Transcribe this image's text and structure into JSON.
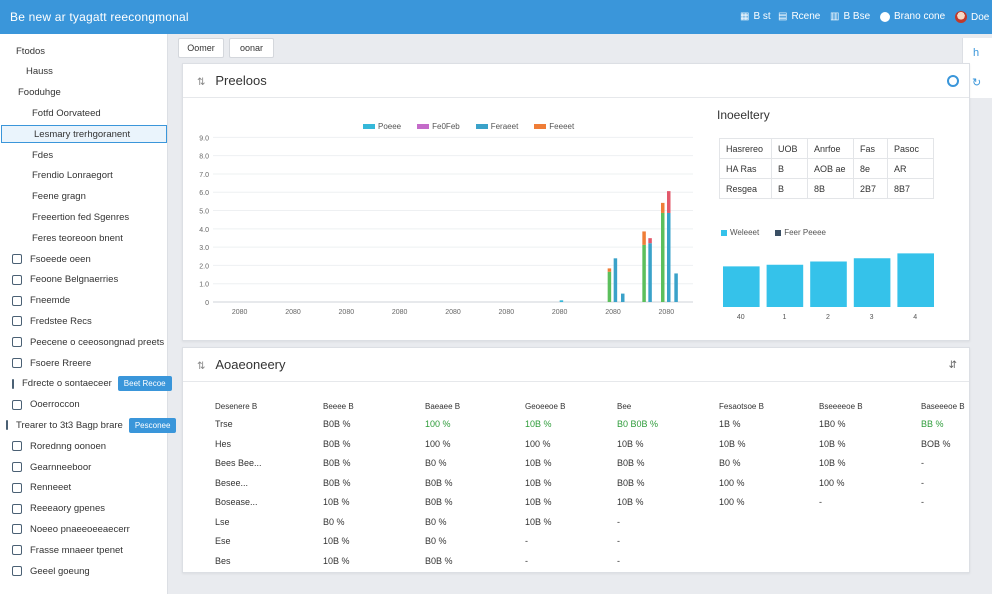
{
  "app": {
    "title": "Be new ar tyagatt reecongmonal",
    "top_items": [
      {
        "icon": "calendar-icon",
        "label": "B st"
      },
      {
        "icon": "grid-icon",
        "label": "Rcene"
      },
      {
        "icon": "bell-icon",
        "label": "B Bse"
      },
      {
        "icon": "user-icon",
        "label": "Brano cone"
      },
      {
        "icon": "avatar-icon",
        "label": "Doe"
      }
    ]
  },
  "toolbar": {
    "buttons": [
      "Oomer",
      "oonar"
    ]
  },
  "sidebar": {
    "items": [
      {
        "label": "Ftodos",
        "indent": 16,
        "icon": false,
        "active": false
      },
      {
        "label": "Hauss",
        "indent": 26,
        "icon": false,
        "active": false
      },
      {
        "label": "Fooduhge",
        "indent": 18,
        "icon": false,
        "active": false
      },
      {
        "label": "Fotfd Oorvateed",
        "indent": 32,
        "icon": false,
        "active": false
      },
      {
        "label": "Lesmary trerhgoranent",
        "indent": 32,
        "icon": false,
        "active": true
      },
      {
        "label": "Fdes",
        "indent": 32,
        "icon": false,
        "active": false
      },
      {
        "label": "Frendio Lonraegort",
        "indent": 32,
        "icon": false,
        "active": false
      },
      {
        "label": "Feene gragn",
        "indent": 32,
        "icon": false,
        "active": false
      },
      {
        "label": "Freeertion fed Sgenres",
        "indent": 32,
        "icon": false,
        "active": false
      },
      {
        "label": "Feres teoreoon bnent",
        "indent": 32,
        "icon": false,
        "active": false
      },
      {
        "label": "Fsoeede oeen",
        "indent": 12,
        "icon": true,
        "active": false
      },
      {
        "label": "Feoone Belgnaerries",
        "indent": 12,
        "icon": true,
        "active": false
      },
      {
        "label": "Fneemde",
        "indent": 12,
        "icon": true,
        "active": false
      },
      {
        "label": "Fredstee Recs",
        "indent": 12,
        "icon": true,
        "active": false
      },
      {
        "label": "Peecene o ceeosongnad preets",
        "indent": 12,
        "icon": true,
        "active": false
      },
      {
        "label": "Fsoere Rreere",
        "indent": 12,
        "icon": true,
        "active": false
      },
      {
        "label": "Fdrecte o sontaeceer",
        "indent": 12,
        "icon": true,
        "active": false,
        "badge": "Beet Recoe"
      },
      {
        "label": "Ooerroccon",
        "indent": 12,
        "icon": true,
        "active": false
      },
      {
        "label": "Trearer to 3t3 Bagp brare",
        "indent": 6,
        "icon": true,
        "active": false,
        "badge": "Pesconee"
      },
      {
        "label": "Rorednng oonoen",
        "indent": 12,
        "icon": true,
        "active": false
      },
      {
        "label": "Gearnneeboor",
        "indent": 12,
        "icon": true,
        "active": false
      },
      {
        "label": "Renneeet",
        "indent": 12,
        "icon": true,
        "active": false
      },
      {
        "label": "Reeeaory gpenes",
        "indent": 12,
        "icon": true,
        "active": false
      },
      {
        "label": "Noeeo pnaeeoeeaecerr",
        "indent": 12,
        "icon": true,
        "active": false
      },
      {
        "label": "Frasse mnaeer tpenet",
        "indent": 12,
        "icon": true,
        "active": false
      },
      {
        "label": "Geeel goeung",
        "indent": 12,
        "icon": true,
        "active": false
      }
    ]
  },
  "products": {
    "title": "Preeloos",
    "chart_data": {
      "type": "bar",
      "title": "",
      "xlabel": "",
      "ylabel": "",
      "ylim": [
        0,
        10
      ],
      "ytick_labels": [
        "0",
        "1.0",
        "2.0",
        "3.0",
        "4.0",
        "5.0",
        "6.0",
        "7.0",
        "8.0",
        "9.0"
      ],
      "categories": [
        "2080",
        "2080",
        "2080",
        "2080",
        "2080",
        "2080",
        "2080",
        "2080",
        "2080"
      ],
      "legend_position": "top",
      "series": [
        {
          "name": "Poeee",
          "color": "#35b8d9",
          "values": [
            0,
            0,
            0,
            0,
            0,
            0,
            0.1,
            0,
            0
          ]
        },
        {
          "name": "Fe0Feb",
          "color": "#c46bc9",
          "values": [
            0,
            0,
            0,
            0,
            0,
            0,
            0,
            0,
            0
          ]
        },
        {
          "name": "Feraeet",
          "color": "#3aa2c9",
          "values": [
            0,
            0,
            0,
            0,
            0,
            0,
            0,
            0.5,
            1.7
          ]
        },
        {
          "name": "Feeeet",
          "color": "#ef7d37",
          "values": [
            0,
            0,
            0,
            0,
            0,
            0,
            0,
            0,
            0
          ]
        }
      ],
      "stacked_groups": [
        {
          "category_index": 7,
          "bars": [
            {
              "segments": [
                {
                  "color": "#5cbf5c",
                  "value": 1.8
                },
                {
                  "color": "#ef7d37",
                  "value": 0.2
                }
              ]
            },
            {
              "segments": [
                {
                  "color": "#3aa2c9",
                  "value": 2.6
                }
              ]
            }
          ]
        },
        {
          "category_index": 7,
          "offset": 1,
          "bars": [
            {
              "segments": [
                {
                  "color": "#5cbf5c",
                  "value": 3.4
                },
                {
                  "color": "#ef7d37",
                  "value": 0.8
                }
              ]
            },
            {
              "segments": [
                {
                  "color": "#3aa2c9",
                  "value": 3.5
                },
                {
                  "color": "#e2586a",
                  "value": 0.3
                }
              ]
            }
          ]
        },
        {
          "category_index": 8,
          "bars": [
            {
              "segments": [
                {
                  "color": "#5cbf5c",
                  "value": 5.3
                },
                {
                  "color": "#ef7d37",
                  "value": 0.6
                }
              ]
            },
            {
              "segments": [
                {
                  "color": "#3aa2c9",
                  "value": 5.3
                },
                {
                  "color": "#e2586a",
                  "value": 1.3
                }
              ]
            }
          ]
        }
      ]
    }
  },
  "inventory": {
    "title": "Inoeeltery",
    "table": [
      [
        "Hasrereo",
        "UOB",
        "Anrfoe",
        "Fas",
        "Pasoc"
      ],
      [
        "HA Ras",
        "B",
        "AOB ae",
        "8e",
        "AR"
      ],
      [
        "Resgea",
        "B",
        "8B",
        "2B7",
        "8B7"
      ]
    ],
    "chart_data": {
      "type": "bar",
      "title": "",
      "legend": [
        "Weleeet",
        "Feer Peeee"
      ],
      "legend_colors": [
        "#35c2ea",
        "#3a4f64"
      ],
      "categories": [
        "40",
        "1",
        "2",
        "3",
        "4"
      ],
      "values": [
        2.5,
        2.6,
        2.8,
        3.0,
        3.3
      ],
      "ylim": [
        0,
        4
      ]
    }
  },
  "summary": {
    "title": "Aoaeoneery",
    "headers": [
      "Desenere B",
      "Beeee B",
      "Baeaee B",
      "Geoeeoe B",
      "Bee",
      "Fesaotsoe B",
      "Bseeeeoe B",
      "Baseeeoe B"
    ],
    "rows": [
      [
        "Trse",
        "B0B %",
        "100 %",
        "10B %",
        "B0 B0B %",
        "1B %",
        "1B0 %",
        "BB %"
      ],
      [
        "Hes",
        "B0B %",
        "100 %",
        "100 %",
        "10B %",
        "10B %",
        "10B %",
        "BOB %"
      ],
      [
        "Bees Bee...",
        "B0B %",
        "B0 %",
        "10B %",
        "B0B %",
        "B0 %",
        "10B %",
        "-"
      ],
      [
        "Besee...",
        "B0B %",
        "B0B %",
        "10B %",
        "B0B %",
        "100 %",
        "100 %",
        "-"
      ],
      [
        "Bosease...",
        "10B %",
        "B0B %",
        "10B %",
        "10B %",
        "100 %",
        "-",
        "-"
      ],
      [
        "Lse",
        "B0 %",
        "B0 %",
        "10B %",
        "-",
        "",
        "",
        ""
      ],
      [
        "Ese",
        "10B %",
        "B0 %",
        "-",
        "-",
        "",
        "",
        ""
      ],
      [
        "Bes",
        "10B %",
        "B0B %",
        "-",
        "-",
        "",
        "",
        ""
      ]
    ],
    "green_cells": [
      [
        0,
        2
      ],
      [
        0,
        3
      ],
      [
        0,
        4
      ],
      [
        0,
        7
      ]
    ]
  }
}
